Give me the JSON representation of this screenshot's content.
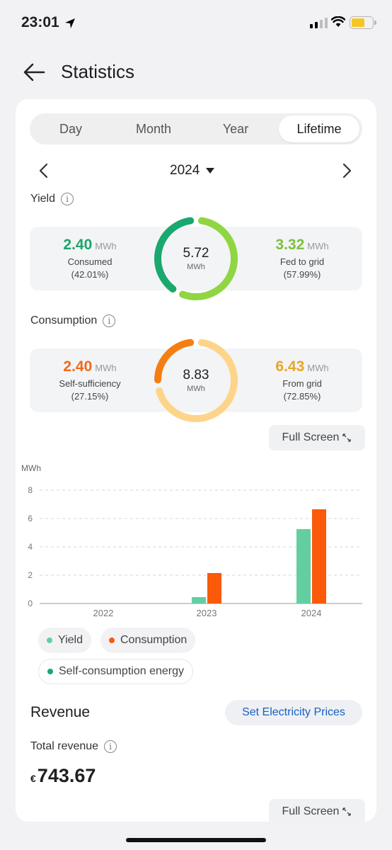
{
  "status_bar": {
    "time": "23:01"
  },
  "nav": {
    "title": "Statistics"
  },
  "tabs": [
    {
      "label": "Day",
      "active": false
    },
    {
      "label": "Month",
      "active": false
    },
    {
      "label": "Year",
      "active": false
    },
    {
      "label": "Lifetime",
      "active": true
    }
  ],
  "period": {
    "year": "2024"
  },
  "yield": {
    "label": "Yield",
    "consumed": {
      "value": "2.40",
      "unit": "MWh",
      "name": "Consumed",
      "pct": "(42.01%)"
    },
    "total": {
      "value": "5.72",
      "unit": "MWh",
      "consumed_fraction": 0.4201
    },
    "fed_to_grid": {
      "value": "3.32",
      "unit": "MWh",
      "name": "Fed to grid",
      "pct": "(57.99%)"
    }
  },
  "consumption": {
    "label": "Consumption",
    "self_sufficiency": {
      "value": "2.40",
      "unit": "MWh",
      "name": "Self-sufficiency",
      "pct": "(27.15%)"
    },
    "total": {
      "value": "8.83",
      "unit": "MWh",
      "self_fraction": 0.2715
    },
    "from_grid": {
      "value": "6.43",
      "unit": "MWh",
      "name": "From grid",
      "pct": "(72.85%)"
    }
  },
  "full_screen_label": "Full Screen",
  "chart_data": {
    "type": "bar",
    "ylabel": "MWh",
    "categories": [
      "2022",
      "2023",
      "2024"
    ],
    "ylim": [
      0,
      8
    ],
    "yticks": [
      0,
      2,
      4,
      6,
      8
    ],
    "grid": true,
    "series": [
      {
        "name": "Yield",
        "values": [
          0,
          0.45,
          5.25
        ],
        "color": "#63cfa0"
      },
      {
        "name": "Consumption",
        "values": [
          0,
          2.15,
          6.65
        ],
        "color": "#fa5a0a"
      }
    ]
  },
  "legend": {
    "yield": "Yield",
    "consumption": "Consumption",
    "self_consumption": "Self-consumption energy"
  },
  "revenue": {
    "title": "Revenue",
    "set_prices": "Set Electricity Prices",
    "total_label": "Total revenue",
    "currency": "€",
    "amount": "743.67"
  },
  "colors": {
    "green_dark": "#1aa86e",
    "green_light": "#8fd642",
    "orange": "#f57e12",
    "orange_light": "#fdd58a",
    "yield_green_text": "#1ba56a",
    "fed_green_text": "#7cc13a",
    "self_orange_text": "#ef6a1a",
    "grid_yellow_text": "#e8a524",
    "accent_blue": "#1a5fc4"
  }
}
